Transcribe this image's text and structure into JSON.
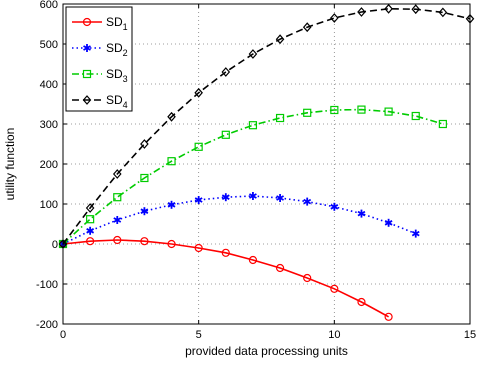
{
  "chart_data": {
    "type": "line",
    "title": "",
    "xlabel": "provided data processing units",
    "ylabel": "utility function",
    "xlim": [
      0,
      15
    ],
    "ylim": [
      -200,
      600
    ],
    "xticks": [
      0,
      5,
      10,
      15
    ],
    "yticks": [
      -200,
      -100,
      0,
      100,
      200,
      300,
      400,
      500,
      600
    ],
    "grid": true,
    "legend_position": "top-left",
    "series": [
      {
        "name": "SD1",
        "label_main": "SD",
        "label_sub": "1",
        "color": "#ff0000",
        "line_style": "solid",
        "marker": "circle",
        "x": [
          0,
          1,
          2,
          3,
          4,
          5,
          6,
          7,
          8,
          9,
          10,
          11,
          12
        ],
        "y": [
          0,
          7,
          10,
          7,
          0,
          -10,
          -22,
          -40,
          -60,
          -85,
          -112,
          -145,
          -182
        ]
      },
      {
        "name": "SD2",
        "label_main": "SD",
        "label_sub": "2",
        "color": "#0000ff",
        "line_style": "dotted",
        "marker": "star",
        "x": [
          0,
          1,
          2,
          3,
          4,
          5,
          6,
          7,
          8,
          9,
          10,
          11,
          12,
          13
        ],
        "y": [
          0,
          33,
          60,
          82,
          98,
          110,
          117,
          120,
          115,
          106,
          93,
          76,
          53,
          26
        ]
      },
      {
        "name": "SD3",
        "label_main": "SD",
        "label_sub": "3",
        "color": "#00cc00",
        "line_style": "dashdot",
        "marker": "square",
        "x": [
          0,
          1,
          2,
          3,
          4,
          5,
          6,
          7,
          8,
          9,
          10,
          11,
          12,
          13,
          14
        ],
        "y": [
          0,
          62,
          117,
          165,
          207,
          243,
          273,
          297,
          315,
          328,
          335,
          336,
          331,
          320,
          300
        ]
      },
      {
        "name": "SD4",
        "label_main": "SD",
        "label_sub": "4",
        "color": "#000000",
        "line_style": "dashed",
        "marker": "diamond",
        "x": [
          0,
          1,
          2,
          3,
          4,
          5,
          6,
          7,
          8,
          9,
          10,
          11,
          12,
          13,
          14,
          15
        ],
        "y": [
          0,
          90,
          175,
          250,
          318,
          378,
          430,
          475,
          512,
          542,
          565,
          580,
          588,
          587,
          579,
          563
        ]
      }
    ]
  }
}
